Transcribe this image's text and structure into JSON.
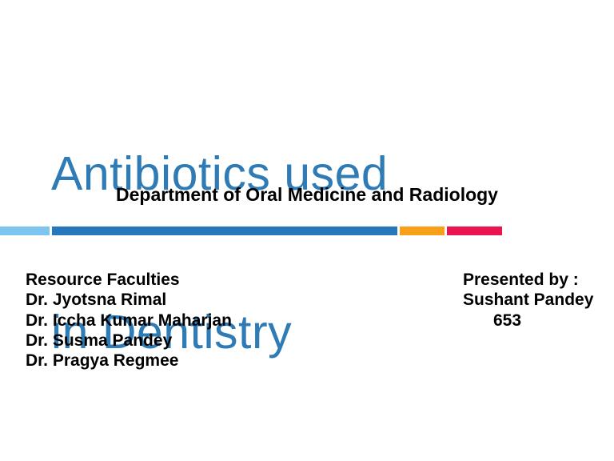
{
  "slide": {
    "title": {
      "line1": "Antibiotics used",
      "line2": "in Dentistry"
    },
    "subtitle": "Department of Oral Medicine and Radiology",
    "left_column": {
      "heading": "Resource Faculties",
      "faculties": {
        "0": "Dr. Jyotsna Rimal",
        "1": "Dr. Iccha Kumar Maharjan",
        "2": "Dr. Susma Pandey",
        "3": "Dr. Pragya Regmee"
      }
    },
    "right_column": {
      "heading": "Presented by :",
      "presenter": "Sushant Pandey",
      "roll_number": "653"
    },
    "colors": {
      "title_text": "#2e7bb5",
      "body_text": "#000000",
      "bar_light_blue": "#7dc5ef",
      "bar_dark_blue": "#2877bd",
      "bar_orange": "#f9a01b",
      "bar_pink": "#ea1550"
    }
  }
}
